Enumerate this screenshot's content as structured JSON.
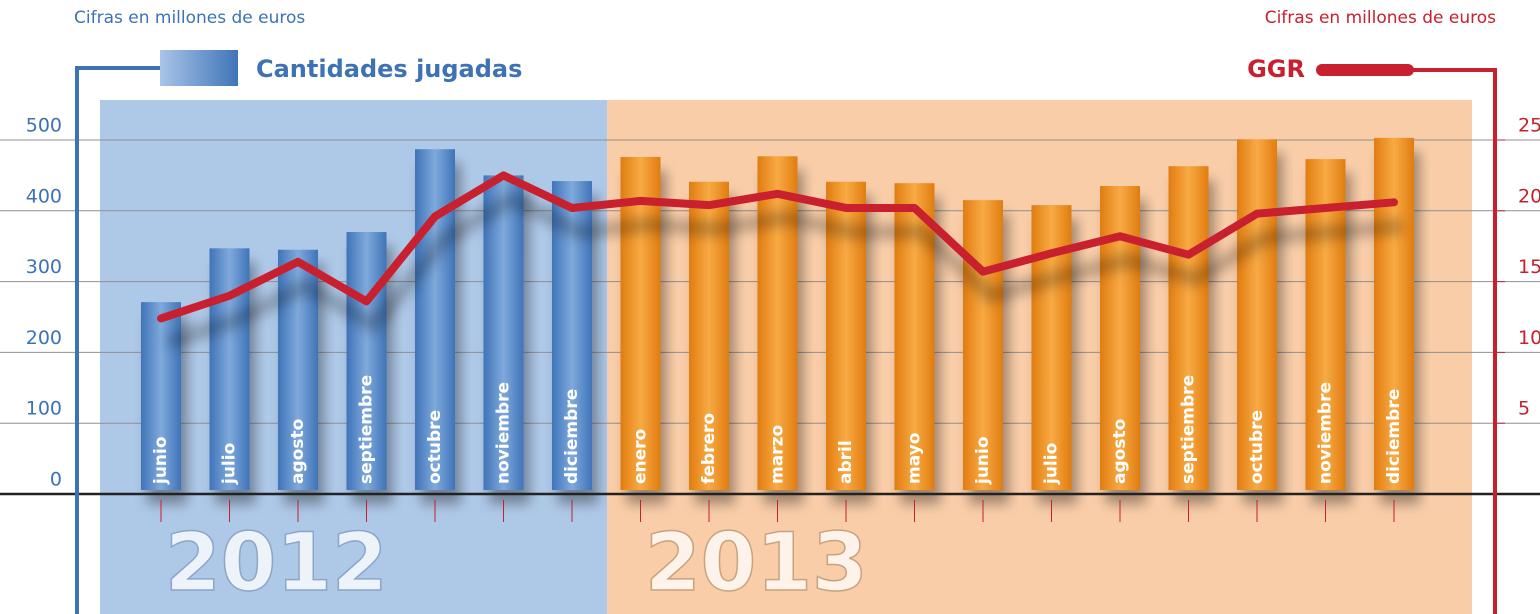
{
  "chart_data": {
    "type": "bar_line",
    "subtitle_left": "Cifras en millones de euros",
    "subtitle_right": "Cifras en millones de euros",
    "categories": [
      "junio",
      "julio",
      "agosto",
      "septiembre",
      "octubre",
      "noviembre",
      "diciembre",
      "enero",
      "febrero",
      "marzo",
      "abril",
      "mayo",
      "junio",
      "julio",
      "agosto",
      "septiembre",
      "octubre",
      "noviembre",
      "diciembre"
    ],
    "year_labels": [
      "2012",
      "2013"
    ],
    "panel_colors": [
      "#aec8e8",
      "#f9cda8"
    ],
    "series": [
      {
        "name": "Cantidades jugadas",
        "type": "bar",
        "color": "#4f86c6",
        "bar_colors": [
          "#4f86c6",
          "#4f86c6",
          "#4f86c6",
          "#4f86c6",
          "#4f86c6",
          "#4f86c6",
          "#4f86c6",
          "#ef8a1a",
          "#ef8a1a",
          "#ef8a1a",
          "#ef8a1a",
          "#ef8a1a",
          "#ef8a1a",
          "#ef8a1a",
          "#ef8a1a",
          "#ef8a1a",
          "#ef8a1a",
          "#ef8a1a",
          "#ef8a1a"
        ],
        "values": [
          271,
          347,
          345,
          370,
          487,
          450,
          442,
          476,
          441,
          477,
          441,
          439,
          415,
          408,
          435,
          463,
          501,
          473,
          503
        ]
      },
      {
        "name": "GGR",
        "type": "line",
        "axis": "y2",
        "color": "#c8202e",
        "values": [
          12.4,
          14.0,
          16.4,
          13.6,
          19.6,
          22.5,
          20.2,
          20.7,
          20.4,
          21.2,
          20.2,
          20.2,
          15.7,
          17.0,
          18.2,
          16.9,
          19.8,
          20.2,
          20.6
        ]
      }
    ],
    "ylim": [
      0,
      500
    ],
    "yticks": [
      0,
      100,
      200,
      300,
      400,
      500
    ],
    "y2lim": [
      0,
      25
    ],
    "y2ticks": [
      5,
      10,
      15,
      20,
      25
    ],
    "grid": true
  }
}
